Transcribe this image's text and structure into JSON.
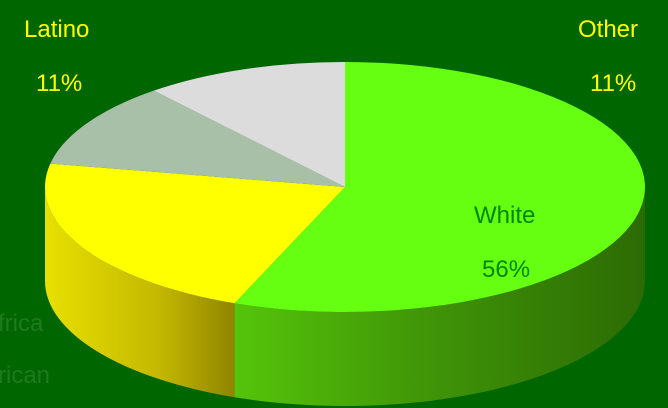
{
  "chart_data": {
    "type": "pie",
    "style": "3d-tilted",
    "slices": [
      {
        "label": "White",
        "value": 56,
        "display": "56%",
        "color": "#66ff11",
        "label_color": "#008800"
      },
      {
        "label": "",
        "value": 22,
        "display": "",
        "color": "#ffff00",
        "label_color": "#006600"
      },
      {
        "label": "Latino",
        "value": 11,
        "display": "11%",
        "color": "#a8bfa8",
        "label_color": "#ffff00"
      },
      {
        "label": "Other",
        "value": 11,
        "display": "11%",
        "color": "#dcdcdc",
        "label_color": "#ffff00"
      }
    ],
    "partial_labels": [
      {
        "text": "frica",
        "color": "#1f7a1f"
      },
      {
        "text": "rican",
        "color": "#1f7a1f"
      }
    ]
  },
  "background": "#006600"
}
